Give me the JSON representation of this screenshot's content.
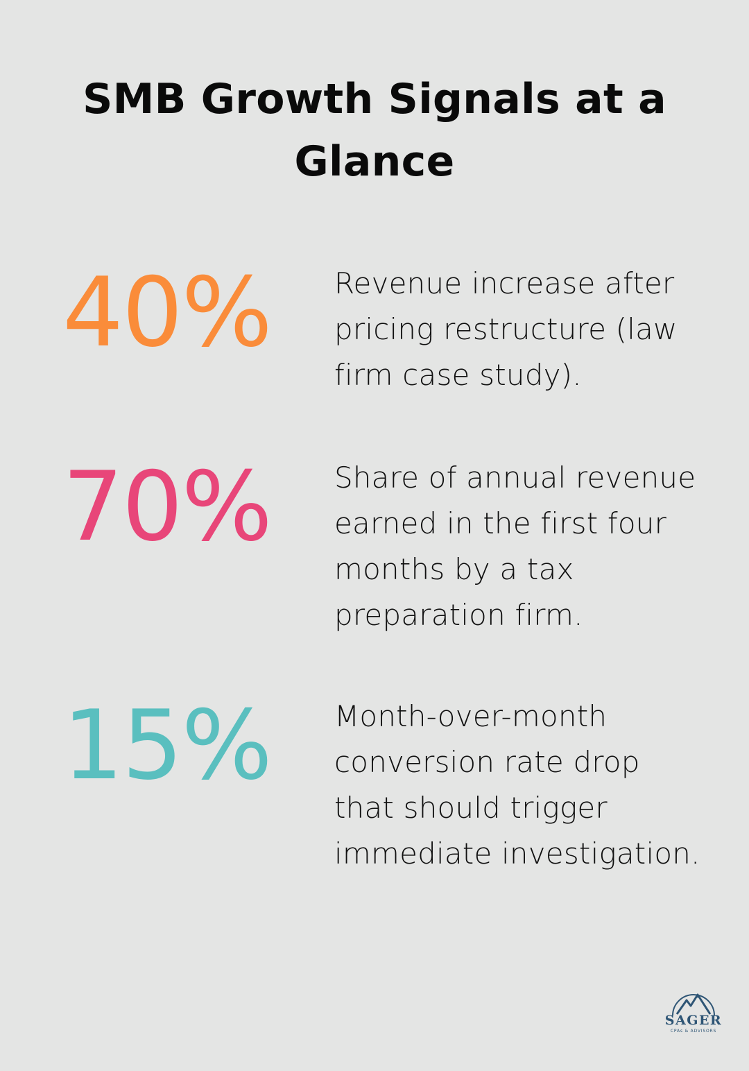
{
  "title": "SMB Growth Signals at a Glance",
  "stats": [
    {
      "value": "40%",
      "description": "Revenue increase after pricing restructure (law firm case study).",
      "color": "#fa8c3a"
    },
    {
      "value": "70%",
      "description": "Share of annual revenue earned in the first four months by a tax preparation firm.",
      "color": "#e84679"
    },
    {
      "value": "15%",
      "description": "Month-over-month conversion rate drop that should trigger immediate investigation.",
      "color": "#5abfbf"
    }
  ],
  "logo": {
    "name": "SAGER",
    "tagline": "CPAs & ADVISORS",
    "icon": "mountain-icon",
    "color": "#2e5575"
  },
  "colors": {
    "background": "#e4e5e4",
    "text": "#111111"
  }
}
